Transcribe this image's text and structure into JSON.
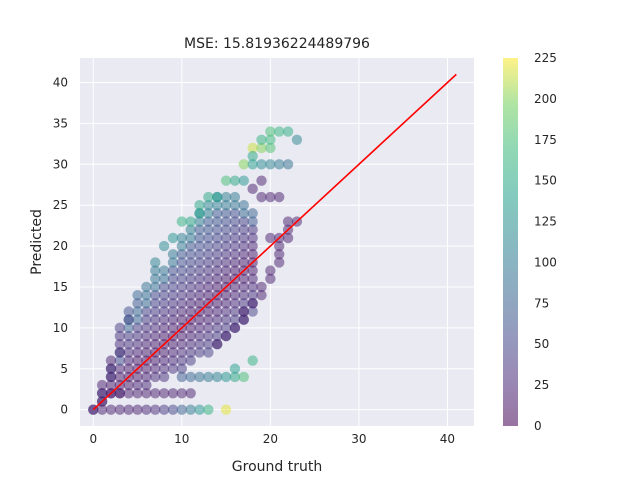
{
  "chart_data": {
    "type": "scatter",
    "title": "MSE: 15.81936224489796",
    "xlabel": "Ground truth",
    "ylabel": "Predicted",
    "xlim": [
      -1.5,
      43
    ],
    "ylim": [
      -2,
      43
    ],
    "xticks": [
      0,
      10,
      20,
      30,
      40
    ],
    "yticks": [
      0,
      5,
      10,
      15,
      20,
      25,
      30,
      35,
      40
    ],
    "grid": true,
    "colormap": "viridis",
    "point_alpha": 0.5,
    "colorbar": {
      "min": 0,
      "max": 225,
      "ticks": [
        0,
        25,
        50,
        75,
        100,
        125,
        150,
        175,
        200,
        225
      ]
    },
    "reference_line": {
      "x": [
        0,
        41
      ],
      "y": [
        0,
        41
      ],
      "color": "#ff0000"
    },
    "point_note": "Points are integer (ground truth, predicted) pairs colored by count; dark = high count.",
    "points": [
      {
        "x": 0,
        "y": 0,
        "c": 20
      },
      {
        "x": 1,
        "y": 0,
        "c": 20
      },
      {
        "x": 2,
        "y": 0,
        "c": 20
      },
      {
        "x": 3,
        "y": 0,
        "c": 20
      },
      {
        "x": 4,
        "y": 0,
        "c": 20
      },
      {
        "x": 5,
        "y": 0,
        "c": 20
      },
      {
        "x": 6,
        "y": 0,
        "c": 25
      },
      {
        "x": 7,
        "y": 0,
        "c": 30
      },
      {
        "x": 8,
        "y": 0,
        "c": 40
      },
      {
        "x": 9,
        "y": 0,
        "c": 50
      },
      {
        "x": 10,
        "y": 0,
        "c": 75
      },
      {
        "x": 11,
        "y": 0,
        "c": 100
      },
      {
        "x": 12,
        "y": 0,
        "c": 130
      },
      {
        "x": 13,
        "y": 0,
        "c": 160
      },
      {
        "x": 15,
        "y": 0,
        "c": 220
      },
      {
        "x": 1,
        "y": 2,
        "c": 20
      },
      {
        "x": 2,
        "y": 2,
        "c": 20
      },
      {
        "x": 3,
        "y": 2,
        "c": 20
      },
      {
        "x": 4,
        "y": 2,
        "c": 20
      },
      {
        "x": 5,
        "y": 2,
        "c": 20
      },
      {
        "x": 6,
        "y": 2,
        "c": 20
      },
      {
        "x": 7,
        "y": 2,
        "c": 20
      },
      {
        "x": 8,
        "y": 2,
        "c": 20
      },
      {
        "x": 9,
        "y": 2,
        "c": 20
      },
      {
        "x": 10,
        "y": 2,
        "c": 20
      },
      {
        "x": 11,
        "y": 2,
        "c": 20
      },
      {
        "x": 10,
        "y": 4,
        "c": 70
      },
      {
        "x": 11,
        "y": 4,
        "c": 80
      },
      {
        "x": 12,
        "y": 4,
        "c": 90
      },
      {
        "x": 13,
        "y": 4,
        "c": 100
      },
      {
        "x": 14,
        "y": 4,
        "c": 110
      },
      {
        "x": 15,
        "y": 4,
        "c": 130
      },
      {
        "x": 16,
        "y": 4,
        "c": 150
      },
      {
        "x": 17,
        "y": 4,
        "c": 175
      },
      {
        "x": 18,
        "y": 6,
        "c": 160
      },
      {
        "x": 16,
        "y": 5,
        "c": 140
      },
      {
        "x": 18,
        "y": 32,
        "c": 215
      },
      {
        "x": 19,
        "y": 32,
        "c": 200
      },
      {
        "x": 20,
        "y": 32,
        "c": 180
      },
      {
        "x": 18,
        "y": 31,
        "c": 150
      },
      {
        "x": 17,
        "y": 30,
        "c": 200
      },
      {
        "x": 18,
        "y": 30,
        "c": 140
      },
      {
        "x": 19,
        "y": 30,
        "c": 120
      },
      {
        "x": 20,
        "y": 30,
        "c": 110
      },
      {
        "x": 21,
        "y": 30,
        "c": 100
      },
      {
        "x": 22,
        "y": 30,
        "c": 90
      },
      {
        "x": 19,
        "y": 33,
        "c": 160
      },
      {
        "x": 20,
        "y": 33,
        "c": 170
      },
      {
        "x": 20,
        "y": 34,
        "c": 175
      },
      {
        "x": 21,
        "y": 34,
        "c": 165
      },
      {
        "x": 22,
        "y": 34,
        "c": 155
      },
      {
        "x": 23,
        "y": 33,
        "c": 115
      },
      {
        "x": 15,
        "y": 28,
        "c": 175
      },
      {
        "x": 16,
        "y": 28,
        "c": 150
      },
      {
        "x": 17,
        "y": 28,
        "c": 130
      },
      {
        "x": 13,
        "y": 26,
        "c": 150
      },
      {
        "x": 14,
        "y": 26,
        "c": 140
      },
      {
        "x": 12,
        "y": 25,
        "c": 150
      },
      {
        "x": 12,
        "y": 24,
        "c": 140
      },
      {
        "x": 10,
        "y": 23,
        "c": 160
      },
      {
        "x": 11,
        "y": 23,
        "c": 150
      },
      {
        "x": 9,
        "y": 21,
        "c": 130
      },
      {
        "x": 8,
        "y": 20,
        "c": 120
      },
      {
        "x": 7,
        "y": 18,
        "c": 110
      },
      {
        "x": 7,
        "y": 17,
        "c": 100
      },
      {
        "x": 6,
        "y": 15,
        "c": 90
      },
      {
        "x": 5,
        "y": 14,
        "c": 80
      },
      {
        "x": 5,
        "y": 13,
        "c": 70
      },
      {
        "x": 4,
        "y": 12,
        "c": 60
      },
      {
        "x": 4,
        "y": 11,
        "c": 50
      },
      {
        "x": 3,
        "y": 10,
        "c": 40
      },
      {
        "x": 3,
        "y": 9,
        "c": 35
      },
      {
        "x": 3,
        "y": 8,
        "c": 30
      },
      {
        "x": 3,
        "y": 7,
        "c": 25
      },
      {
        "x": 2,
        "y": 6,
        "c": 20
      },
      {
        "x": 2,
        "y": 5,
        "c": 20
      },
      {
        "x": 2,
        "y": 4,
        "c": 20
      },
      {
        "x": 1,
        "y": 3,
        "c": 20
      },
      {
        "x": 1,
        "y": 1,
        "c": 20
      },
      {
        "x": 18,
        "y": 27,
        "c": 20
      },
      {
        "x": 19,
        "y": 26,
        "c": 20
      },
      {
        "x": 19,
        "y": 28,
        "c": 20
      },
      {
        "x": 20,
        "y": 26,
        "c": 20
      },
      {
        "x": 21,
        "y": 26,
        "c": 20
      },
      {
        "x": 20,
        "y": 21,
        "c": 20
      },
      {
        "x": 21,
        "y": 21,
        "c": 20
      },
      {
        "x": 22,
        "y": 21,
        "c": 20
      },
      {
        "x": 22,
        "y": 22,
        "c": 20
      },
      {
        "x": 22,
        "y": 23,
        "c": 20
      },
      {
        "x": 23,
        "y": 23,
        "c": 20
      },
      {
        "x": 21,
        "y": 20,
        "c": 20
      },
      {
        "x": 21,
        "y": 19,
        "c": 20
      },
      {
        "x": 21,
        "y": 18,
        "c": 20
      },
      {
        "x": 20,
        "y": 17,
        "c": 20
      },
      {
        "x": 20,
        "y": 16,
        "c": 20
      },
      {
        "x": 19,
        "y": 15,
        "c": 20
      },
      {
        "x": 19,
        "y": 14,
        "c": 20
      },
      {
        "x": 18,
        "y": 13,
        "c": 20
      },
      {
        "x": 17,
        "y": 12,
        "c": 20
      },
      {
        "x": 17,
        "y": 11,
        "c": 20
      },
      {
        "x": 16,
        "y": 10,
        "c": 20
      },
      {
        "x": 15,
        "y": 9,
        "c": 20
      },
      {
        "x": 14,
        "y": 8,
        "c": 20
      }
    ]
  }
}
